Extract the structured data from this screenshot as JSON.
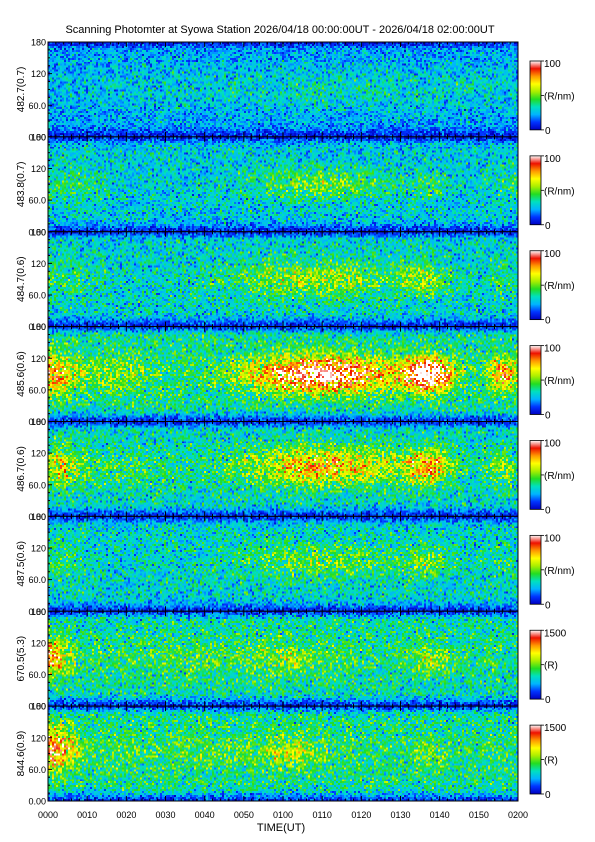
{
  "figure": {
    "title": "Scanning Photomter at Syowa Station 2026/04/18 00:00:00UT - 2026/04/18 02:00:00UT"
  },
  "chart_data": {
    "type": "heatmap",
    "title": "Scanning Photomter at Syowa Station 2026/04/18 00:00:00UT - 2026/04/18 02:00:00UT",
    "xlabel": "TIME(UT)",
    "x_ticks": [
      "0000",
      "0010",
      "0020",
      "0030",
      "0040",
      "0050",
      "0100",
      "0110",
      "0120",
      "0130",
      "0140",
      "0150",
      "0200"
    ],
    "xlim_minutes": [
      0,
      120
    ],
    "y_ticks": [
      "0.00",
      "60.0",
      "120",
      "180"
    ],
    "ylim": [
      0,
      180
    ],
    "colorscale": [
      "#0000c0",
      "#0033ff",
      "#00b4ff",
      "#00e0c0",
      "#22dd22",
      "#aaee00",
      "#ffff00",
      "#ff9900",
      "#ee1100",
      "#ffffff"
    ],
    "panels": [
      {
        "label": "482.7(0.7)",
        "colorbar_max": "100",
        "colorbar_min": "0",
        "unit": "(R/nm)",
        "scale_max": 100,
        "base": 22,
        "edge": 6,
        "blobs": [
          {
            "t": 25,
            "y": 95,
            "st": 30,
            "sy": 45,
            "a": 6
          },
          {
            "t": 75,
            "y": 90,
            "st": 30,
            "sy": 40,
            "a": 10
          },
          {
            "t": 110,
            "y": 90,
            "st": 15,
            "sy": 40,
            "a": 6
          }
        ]
      },
      {
        "label": "483.8(0.7)",
        "colorbar_max": "100",
        "colorbar_min": "0",
        "unit": "(R/nm)",
        "scale_max": 100,
        "base": 28,
        "edge": 6,
        "blobs": [
          {
            "t": 4,
            "y": 90,
            "st": 10,
            "sy": 35,
            "a": 12
          },
          {
            "t": 70,
            "y": 90,
            "st": 18,
            "sy": 30,
            "a": 22
          },
          {
            "t": 98,
            "y": 90,
            "st": 5,
            "sy": 28,
            "a": 10
          },
          {
            "t": 118,
            "y": 90,
            "st": 5,
            "sy": 30,
            "a": 10
          }
        ]
      },
      {
        "label": "484.7(0.6)",
        "colorbar_max": "100",
        "colorbar_min": "0",
        "unit": "(R/nm)",
        "scale_max": 100,
        "base": 30,
        "edge": 6,
        "blobs": [
          {
            "t": 4,
            "y": 90,
            "st": 10,
            "sy": 35,
            "a": 10
          },
          {
            "t": 68,
            "y": 90,
            "st": 22,
            "sy": 35,
            "a": 24
          },
          {
            "t": 96,
            "y": 90,
            "st": 6,
            "sy": 30,
            "a": 20
          },
          {
            "t": 117,
            "y": 90,
            "st": 5,
            "sy": 30,
            "a": 10
          }
        ]
      },
      {
        "label": "485.6(0.6)",
        "colorbar_max": "100",
        "colorbar_min": "0",
        "unit": "(R/nm)",
        "scale_max": 100,
        "base": 36,
        "edge": 6,
        "blobs": [
          {
            "t": 1,
            "y": 90,
            "st": 5,
            "sy": 35,
            "a": 40
          },
          {
            "t": 15,
            "y": 90,
            "st": 14,
            "sy": 35,
            "a": 15
          },
          {
            "t": 70,
            "y": 90,
            "st": 18,
            "sy": 33,
            "a": 72
          },
          {
            "t": 97,
            "y": 90,
            "st": 6,
            "sy": 30,
            "a": 80
          },
          {
            "t": 116,
            "y": 90,
            "st": 4,
            "sy": 30,
            "a": 45
          }
        ]
      },
      {
        "label": "486.7(0.6)",
        "colorbar_max": "100",
        "colorbar_min": "0",
        "unit": "(R/nm)",
        "scale_max": 100,
        "base": 32,
        "edge": 6,
        "blobs": [
          {
            "t": 3,
            "y": 95,
            "st": 6,
            "sy": 38,
            "a": 28
          },
          {
            "t": 20,
            "y": 90,
            "st": 14,
            "sy": 35,
            "a": 10
          },
          {
            "t": 70,
            "y": 95,
            "st": 20,
            "sy": 35,
            "a": 42
          },
          {
            "t": 97,
            "y": 95,
            "st": 6,
            "sy": 30,
            "a": 42
          },
          {
            "t": 116,
            "y": 90,
            "st": 4,
            "sy": 30,
            "a": 20
          }
        ]
      },
      {
        "label": "487.5(0.6)",
        "colorbar_max": "100",
        "colorbar_min": "0",
        "unit": "(R/nm)",
        "scale_max": 100,
        "base": 30,
        "edge": 6,
        "blobs": [
          {
            "t": 2,
            "y": 95,
            "st": 6,
            "sy": 40,
            "a": 12
          },
          {
            "t": 70,
            "y": 95,
            "st": 22,
            "sy": 35,
            "a": 18
          },
          {
            "t": 97,
            "y": 95,
            "st": 6,
            "sy": 30,
            "a": 16
          },
          {
            "t": 116,
            "y": 90,
            "st": 4,
            "sy": 30,
            "a": 8
          }
        ]
      },
      {
        "label": "670.5(5.3)",
        "colorbar_max": "1500",
        "colorbar_min": "0",
        "unit": "(R)",
        "scale_max": 1500,
        "base": 34,
        "edge": 6,
        "blobs": [
          {
            "t": 0,
            "y": 92,
            "st": 5,
            "sy": 32,
            "a": 50
          },
          {
            "t": 45,
            "y": 92,
            "st": 45,
            "sy": 40,
            "a": 10
          },
          {
            "t": 62,
            "y": 90,
            "st": 6,
            "sy": 26,
            "a": 12
          },
          {
            "t": 98,
            "y": 90,
            "st": 5,
            "sy": 28,
            "a": 18
          },
          {
            "t": 113,
            "y": 90,
            "st": 4,
            "sy": 28,
            "a": 6
          }
        ]
      },
      {
        "label": "844.6(0.9)",
        "colorbar_max": "1500",
        "colorbar_min": "0",
        "unit": "(R)",
        "scale_max": 1500,
        "base": 36,
        "edge": 6,
        "blobs": [
          {
            "t": 1,
            "y": 100,
            "st": 6,
            "sy": 38,
            "a": 50
          },
          {
            "t": 45,
            "y": 95,
            "st": 45,
            "sy": 40,
            "a": 8
          },
          {
            "t": 62,
            "y": 92,
            "st": 6,
            "sy": 26,
            "a": 20
          },
          {
            "t": 97,
            "y": 90,
            "st": 4,
            "sy": 26,
            "a": 12
          },
          {
            "t": 112,
            "y": 90,
            "st": 4,
            "sy": 26,
            "a": 6
          }
        ]
      }
    ]
  }
}
